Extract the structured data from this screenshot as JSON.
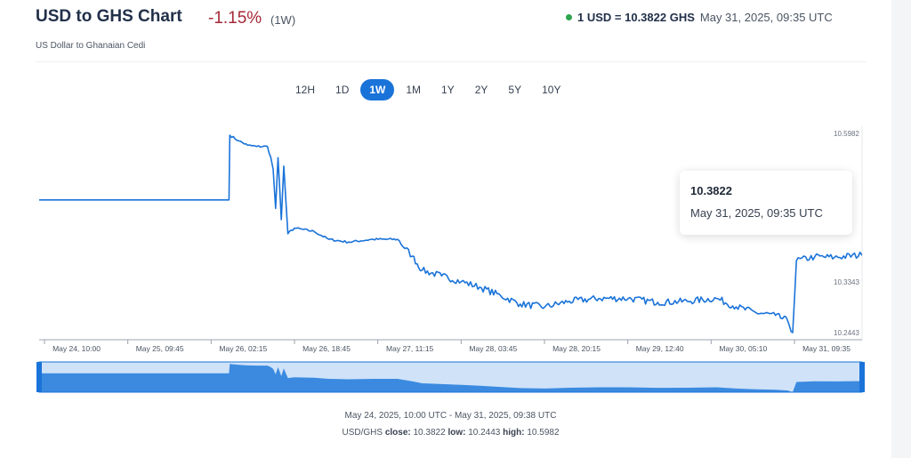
{
  "header": {
    "title": "USD to GHS Chart",
    "change": "-1.15%",
    "period": "(1W)",
    "subtitle": "US Dollar to Ghanaian Cedi",
    "rate": "1 USD = 10.3822 GHS",
    "rate_time": "May 31, 2025, 09:35 UTC"
  },
  "range_tabs": [
    {
      "label": "12H",
      "active": false
    },
    {
      "label": "1D",
      "active": false
    },
    {
      "label": "1W",
      "active": true
    },
    {
      "label": "1M",
      "active": false
    },
    {
      "label": "1Y",
      "active": false
    },
    {
      "label": "2Y",
      "active": false
    },
    {
      "label": "5Y",
      "active": false
    },
    {
      "label": "10Y",
      "active": false
    }
  ],
  "tooltip": {
    "value": "10.3822",
    "time": "May 31, 2025, 09:35 UTC"
  },
  "footer": {
    "range": "May 24, 2025, 10:00 UTC - May 31, 2025, 09:38 UTC",
    "pair": "USD/GHS",
    "close_label": "close:",
    "close": "10.3822",
    "low_label": "low:",
    "low": "10.2443",
    "high_label": "high:",
    "high": "10.5982"
  },
  "colors": {
    "line": "#1a73d9",
    "navigator_fill": "#3b8ae0",
    "navigator_bg": "#cfe2f8",
    "negative": "#a72837",
    "live": "#2ea44f"
  },
  "chart_data": {
    "type": "line",
    "series": [
      {
        "values": [
          [
            "2025-05-24 10:00",
            10.48
          ],
          [
            "2025-05-25 06:00",
            10.48
          ],
          [
            "2025-05-26 00:40",
            10.48
          ],
          [
            "2025-05-26 00:50",
            10.595
          ],
          [
            "2025-05-26 02:40",
            10.585
          ],
          [
            "2025-05-26 04:30",
            10.577
          ],
          [
            "2025-05-26 06:20",
            10.575
          ],
          [
            "2025-05-26 08:30",
            10.575
          ],
          [
            "2025-05-26 09:10",
            10.556
          ],
          [
            "2025-05-26 09:40",
            10.535
          ],
          [
            "2025-05-26 10:10",
            10.465
          ],
          [
            "2025-05-26 10:40",
            10.555
          ],
          [
            "2025-05-26 11:20",
            10.445
          ],
          [
            "2025-05-26 11:50",
            10.54
          ],
          [
            "2025-05-26 12:40",
            10.42
          ],
          [
            "2025-05-26 14:00",
            10.43
          ],
          [
            "2025-05-26 18:00",
            10.424
          ],
          [
            "2025-05-26 21:00",
            10.41
          ],
          [
            "2025-05-27 01:00",
            10.405
          ],
          [
            "2025-05-27 06:00",
            10.41
          ],
          [
            "2025-05-27 11:00",
            10.41
          ],
          [
            "2025-05-27 14:00",
            10.38
          ],
          [
            "2025-05-27 16:00",
            10.355
          ],
          [
            "2025-05-27 20:00",
            10.345
          ],
          [
            "2025-05-28 00:00",
            10.335
          ],
          [
            "2025-05-28 03:45",
            10.325
          ],
          [
            "2025-05-28 08:00",
            10.31
          ],
          [
            "2025-05-28 12:00",
            10.295
          ],
          [
            "2025-05-28 17:00",
            10.29
          ],
          [
            "2025-05-28 22:00",
            10.3
          ],
          [
            "2025-05-29 04:00",
            10.305
          ],
          [
            "2025-05-29 10:00",
            10.305
          ],
          [
            "2025-05-29 16:00",
            10.298
          ],
          [
            "2025-05-29 22:00",
            10.3
          ],
          [
            "2025-05-30 04:00",
            10.305
          ],
          [
            "2025-05-30 08:00",
            10.29
          ],
          [
            "2025-05-30 12:00",
            10.28
          ],
          [
            "2025-05-30 16:00",
            10.275
          ],
          [
            "2025-05-30 18:30",
            10.265
          ],
          [
            "2025-05-30 19:30",
            10.2443
          ],
          [
            "2025-05-30 20:15",
            10.372
          ],
          [
            "2025-05-31 00:00",
            10.379
          ],
          [
            "2025-05-31 04:00",
            10.378
          ],
          [
            "2025-05-31 09:35",
            10.3822
          ]
        ]
      }
    ],
    "x_ticks": [
      "May 24, 10:00",
      "May 25, 09:45",
      "May 26, 02:15",
      "May 26, 18:45",
      "May 27, 11:15",
      "May 28, 03:45",
      "May 28, 20:15",
      "May 29, 12:40",
      "May 30, 05:10",
      "May 31, 09:35"
    ],
    "y_ticks": [
      "10.5982",
      "10.3343",
      "10.2443"
    ],
    "y_tick_values": [
      10.5982,
      10.3343,
      10.2443
    ],
    "xlim": [
      "2025-05-24 10:00",
      "2025-05-31 09:38"
    ],
    "ylim": [
      10.2443,
      10.5982
    ],
    "grid": false
  }
}
